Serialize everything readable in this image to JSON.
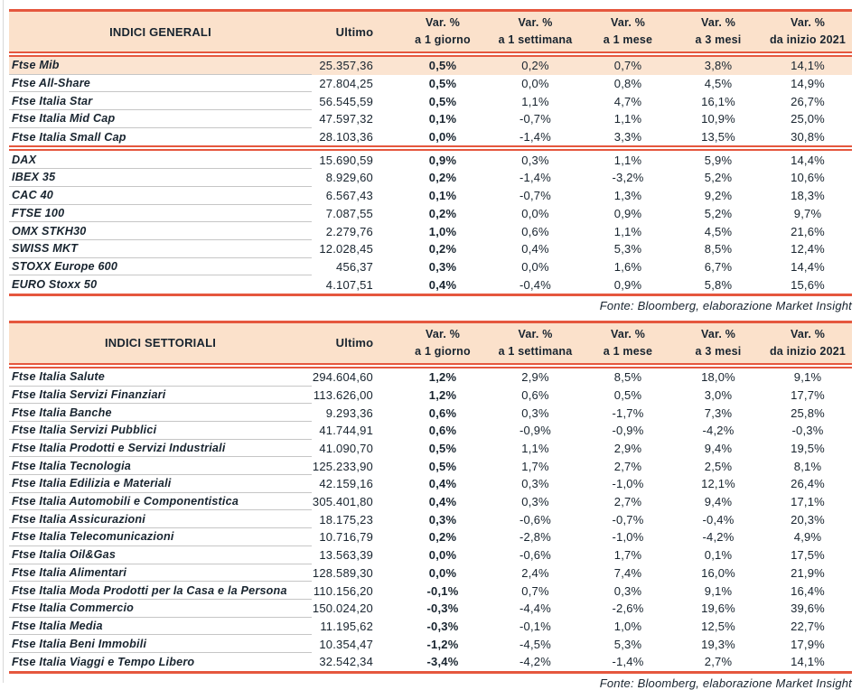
{
  "colors": {
    "accent_red": "#E5573E",
    "header_bg": "#FBE1CB",
    "highlight_row_bg": "#FBE4D1",
    "text": "#18242F",
    "row_separator": "#C6C6C6"
  },
  "source_note": "Fonte: Bloomberg, elaborazione Market Insight",
  "col_headers": {
    "ultimo": "Ultimo",
    "var": [
      {
        "l1": "Var. %",
        "l2": "a 1 giorno"
      },
      {
        "l1": "Var. %",
        "l2": "a 1 settimana"
      },
      {
        "l1": "Var. %",
        "l2": "a 1 mese"
      },
      {
        "l1": "Var. %",
        "l2": "a 3 mesi"
      },
      {
        "l1": "Var. %",
        "l2": "da inizio 2021"
      }
    ]
  },
  "tables": [
    {
      "title": "INDICI GENERALI",
      "groups": [
        {
          "rows": [
            {
              "name": "Ftse Mib",
              "ultimo": "25.357,36",
              "d1": "0,5%",
              "w1": "0,2%",
              "m1": "0,7%",
              "m3": "3,8%",
              "ytd": "14,1%",
              "highlight": true
            },
            {
              "name": "Ftse All-Share",
              "ultimo": "27.804,25",
              "d1": "0,5%",
              "w1": "0,0%",
              "m1": "0,8%",
              "m3": "4,5%",
              "ytd": "14,9%"
            },
            {
              "name": "Ftse Italia Star",
              "ultimo": "56.545,59",
              "d1": "0,5%",
              "w1": "1,1%",
              "m1": "4,7%",
              "m3": "16,1%",
              "ytd": "26,7%"
            },
            {
              "name": "Ftse Italia Mid Cap",
              "ultimo": "47.597,32",
              "d1": "0,1%",
              "w1": "-0,7%",
              "m1": "1,1%",
              "m3": "10,9%",
              "ytd": "25,0%"
            },
            {
              "name": "Ftse Italia Small Cap",
              "ultimo": "28.103,36",
              "d1": "0,0%",
              "w1": "-1,4%",
              "m1": "3,3%",
              "m3": "13,5%",
              "ytd": "30,8%"
            }
          ]
        },
        {
          "rows": [
            {
              "name": "DAX",
              "ultimo": "15.690,59",
              "d1": "0,9%",
              "w1": "0,3%",
              "m1": "1,1%",
              "m3": "5,9%",
              "ytd": "14,4%"
            },
            {
              "name": "IBEX 35",
              "ultimo": "8.929,60",
              "d1": "0,2%",
              "w1": "-1,4%",
              "m1": "-3,2%",
              "m3": "5,2%",
              "ytd": "10,6%"
            },
            {
              "name": "CAC 40",
              "ultimo": "6.567,43",
              "d1": "0,1%",
              "w1": "-0,7%",
              "m1": "1,3%",
              "m3": "9,2%",
              "ytd": "18,3%"
            },
            {
              "name": "FTSE 100",
              "ultimo": "7.087,55",
              "d1": "0,2%",
              "w1": "0,0%",
              "m1": "0,9%",
              "m3": "5,2%",
              "ytd": "9,7%"
            },
            {
              "name": "OMX STKH30",
              "ultimo": "2.279,76",
              "d1": "1,0%",
              "w1": "0,6%",
              "m1": "1,1%",
              "m3": "4,5%",
              "ytd": "21,6%"
            },
            {
              "name": "SWISS MKT",
              "ultimo": "12.028,45",
              "d1": "0,2%",
              "w1": "0,4%",
              "m1": "5,3%",
              "m3": "8,5%",
              "ytd": "12,4%"
            },
            {
              "name": "STOXX Europe 600",
              "ultimo": "456,37",
              "d1": "0,3%",
              "w1": "0,0%",
              "m1": "1,6%",
              "m3": "6,7%",
              "ytd": "14,4%"
            },
            {
              "name": "EURO Stoxx 50",
              "ultimo": "4.107,51",
              "d1": "0,4%",
              "w1": "-0,4%",
              "m1": "0,9%",
              "m3": "5,8%",
              "ytd": "15,6%"
            }
          ]
        }
      ]
    },
    {
      "title": "INDICI SETTORIALI",
      "groups": [
        {
          "rows": [
            {
              "name": "Ftse Italia Salute",
              "ultimo": "294.604,60",
              "d1": "1,2%",
              "w1": "2,9%",
              "m1": "8,5%",
              "m3": "18,0%",
              "ytd": "9,1%"
            },
            {
              "name": "Ftse Italia Servizi Finanziari",
              "ultimo": "113.626,00",
              "d1": "1,2%",
              "w1": "0,6%",
              "m1": "0,5%",
              "m3": "3,0%",
              "ytd": "17,7%"
            },
            {
              "name": "Ftse Italia Banche",
              "ultimo": "9.293,36",
              "d1": "0,6%",
              "w1": "0,3%",
              "m1": "-1,7%",
              "m3": "7,3%",
              "ytd": "25,8%"
            },
            {
              "name": "Ftse Italia Servizi Pubblici",
              "ultimo": "41.744,91",
              "d1": "0,6%",
              "w1": "-0,9%",
              "m1": "-0,9%",
              "m3": "-4,2%",
              "ytd": "-0,3%"
            },
            {
              "name": "Ftse Italia Prodotti e Servizi Industriali",
              "ultimo": "41.090,70",
              "d1": "0,5%",
              "w1": "1,1%",
              "m1": "2,9%",
              "m3": "9,4%",
              "ytd": "19,5%"
            },
            {
              "name": "Ftse Italia Tecnologia",
              "ultimo": "125.233,90",
              "d1": "0,5%",
              "w1": "1,7%",
              "m1": "2,7%",
              "m3": "2,5%",
              "ytd": "8,1%"
            },
            {
              "name": "Ftse Italia Edilizia e Materiali",
              "ultimo": "42.159,16",
              "d1": "0,4%",
              "w1": "0,3%",
              "m1": "-1,0%",
              "m3": "12,1%",
              "ytd": "26,4%"
            },
            {
              "name": "Ftse Italia Automobili e Componentistica",
              "ultimo": "305.401,80",
              "d1": "0,4%",
              "w1": "0,3%",
              "m1": "2,7%",
              "m3": "9,4%",
              "ytd": "17,1%"
            },
            {
              "name": "Ftse Italia Assicurazioni",
              "ultimo": "18.175,23",
              "d1": "0,3%",
              "w1": "-0,6%",
              "m1": "-0,7%",
              "m3": "-0,4%",
              "ytd": "20,3%"
            },
            {
              "name": "Ftse Italia Telecomunicazioni",
              "ultimo": "10.716,79",
              "d1": "0,2%",
              "w1": "-2,8%",
              "m1": "-1,0%",
              "m3": "-4,2%",
              "ytd": "4,9%"
            },
            {
              "name": "Ftse Italia Oil&Gas",
              "ultimo": "13.563,39",
              "d1": "0,0%",
              "w1": "-0,6%",
              "m1": "1,7%",
              "m3": "0,1%",
              "ytd": "17,5%"
            },
            {
              "name": "Ftse Italia Alimentari",
              "ultimo": "128.589,30",
              "d1": "0,0%",
              "w1": "2,4%",
              "m1": "7,4%",
              "m3": "16,0%",
              "ytd": "21,9%"
            },
            {
              "name": "Ftse Italia Moda Prodotti per la Casa e la Persona",
              "ultimo": "110.156,20",
              "d1": "-0,1%",
              "w1": "0,7%",
              "m1": "0,3%",
              "m3": "9,1%",
              "ytd": "16,4%"
            },
            {
              "name": "Ftse Italia Commercio",
              "ultimo": "150.024,20",
              "d1": "-0,3%",
              "w1": "-4,4%",
              "m1": "-2,6%",
              "m3": "19,6%",
              "ytd": "39,6%"
            },
            {
              "name": "Ftse Italia Media",
              "ultimo": "11.195,62",
              "d1": "-0,3%",
              "w1": "-0,1%",
              "m1": "1,0%",
              "m3": "12,5%",
              "ytd": "22,7%"
            },
            {
              "name": "Ftse Italia Beni Immobili",
              "ultimo": "10.354,47",
              "d1": "-1,2%",
              "w1": "-4,5%",
              "m1": "5,3%",
              "m3": "19,3%",
              "ytd": "17,9%"
            },
            {
              "name": "Ftse Italia Viaggi e Tempo Libero",
              "ultimo": "32.542,34",
              "d1": "-3,4%",
              "w1": "-4,2%",
              "m1": "-1,4%",
              "m3": "2,7%",
              "ytd": "14,1%"
            }
          ]
        }
      ]
    }
  ]
}
